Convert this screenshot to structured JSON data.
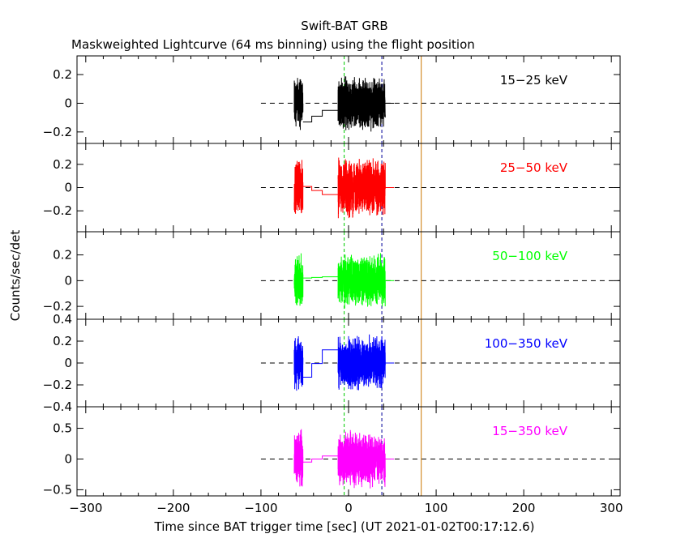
{
  "chart_data": {
    "type": "line",
    "title": "Swift-BAT GRB",
    "subtitle": "Maskweighted Lightcurve (64 ms binning) using the flight position",
    "xlabel": "Time since BAT trigger time [sec] (UT 2021-01-02T00:17:12.6)",
    "ylabel": "Counts/sec/det",
    "xlim": [
      -310,
      310
    ],
    "x_ticks": [
      -300,
      -200,
      -100,
      0,
      100,
      200,
      300
    ],
    "x_tick_labels": [
      "−300",
      "−200",
      "−100",
      "0",
      "100",
      "200",
      "300"
    ],
    "grid": false,
    "dashed_zero_line_range": [
      -100,
      310
    ],
    "data_segments": [
      [
        -62,
        -52
      ],
      [
        -12,
        42
      ]
    ],
    "gap_step_points": [
      [
        -52,
        -42,
        0
      ],
      [
        -42,
        -30,
        0.5
      ],
      [
        -30,
        -12,
        1
      ]
    ],
    "vertical_markers": [
      {
        "x": -5,
        "color": "#00cc00",
        "style": "dashed"
      },
      {
        "x": 38,
        "color": "#000099",
        "style": "dashed"
      },
      {
        "x": 83,
        "color": "#cc7700",
        "style": "solid"
      }
    ],
    "series": [
      {
        "name": "15−25 keV",
        "label": "15−25 keV",
        "color": "#000000",
        "ylim": [
          -0.28,
          0.33
        ],
        "y_ticks": [
          -0.2,
          0,
          0.2
        ],
        "y_tick_labels": [
          "−0.2",
          "0",
          "0.2"
        ],
        "noise_amplitude": 0.09,
        "gap_levels": [
          -0.13,
          -0.05
        ]
      },
      {
        "name": "25−50 keV",
        "label": "25−50 keV",
        "color": "#ff0000",
        "ylim": [
          -0.38,
          0.38
        ],
        "y_ticks": [
          -0.2,
          0,
          0.2
        ],
        "y_tick_labels": [
          "−0.2",
          "0",
          "0.2"
        ],
        "noise_amplitude": 0.12,
        "gap_levels": [
          0.01,
          -0.06
        ]
      },
      {
        "name": "50−100 keV",
        "label": "50−100 keV",
        "color": "#00ff00",
        "ylim": [
          -0.3,
          0.38
        ],
        "y_ticks": [
          -0.2,
          0,
          0.2
        ],
        "y_tick_labels": [
          "−0.2",
          "0",
          "0.2"
        ],
        "noise_amplitude": 0.1,
        "gap_levels": [
          0.02,
          0.03
        ]
      },
      {
        "name": "100−350 keV",
        "label": "100−350 keV",
        "color": "#0000ff",
        "ylim": [
          -0.4,
          0.4
        ],
        "y_ticks": [
          -0.4,
          -0.2,
          0,
          0.2,
          0.4
        ],
        "y_tick_labels": [
          "−0.4",
          "−0.2",
          "0",
          "0.2",
          "0.4"
        ],
        "noise_amplitude": 0.12,
        "gap_levels": [
          -0.13,
          0.12
        ]
      },
      {
        "name": "15−350 keV",
        "label": "15−350 keV",
        "color": "#ff00ff",
        "ylim": [
          -0.6,
          0.85
        ],
        "y_ticks": [
          -0.5,
          0,
          0.5
        ],
        "y_tick_labels": [
          "−0.5",
          "0",
          "0.5"
        ],
        "noise_amplitude": 0.22,
        "gap_levels": [
          -0.05,
          0.05
        ]
      }
    ]
  }
}
